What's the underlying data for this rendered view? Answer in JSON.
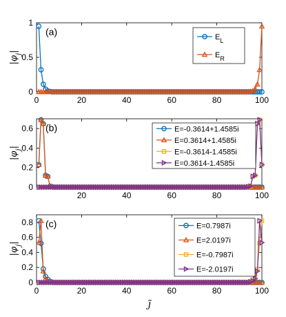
{
  "colors": {
    "blue": "#0072BD",
    "orange": "#D95319",
    "yellow": "#EDB120",
    "purple": "#7E2F8E"
  },
  "chart_data": [
    {
      "type": "line",
      "panel_label": "(a)",
      "ylabel": "|φ_j|",
      "xlabel": "",
      "xlim": [
        0,
        100
      ],
      "ylim": [
        0,
        1
      ],
      "xticks": [
        "0",
        "20",
        "40",
        "60",
        "80",
        "100"
      ],
      "yticks": [
        "0",
        "0.5",
        "1"
      ],
      "ytick_values": [
        0,
        0.5,
        1
      ],
      "legend_position": "top-right",
      "series": [
        {
          "name": "E_L",
          "legend_main": "E",
          "legend_sub": "L",
          "color": "#0072BD",
          "marker": "circle",
          "left": [
            0.95,
            0.32,
            0.11,
            0.04,
            0.013,
            0.005
          ],
          "right": [],
          "base": 0
        },
        {
          "name": "E_R",
          "legend_main": "E",
          "legend_sub": "R",
          "color": "#D95319",
          "marker": "triangle-up",
          "left": [],
          "right": [
            0.005,
            0.013,
            0.04,
            0.11,
            0.32,
            0.95
          ],
          "base": 0
        }
      ]
    },
    {
      "type": "line",
      "panel_label": "(b)",
      "ylabel": "|φ_j|",
      "xlabel": "",
      "xlim": [
        0,
        100
      ],
      "ylim": [
        0,
        0.7
      ],
      "xticks": [
        "20",
        "40",
        "60",
        "80",
        "100"
      ],
      "yticks": [
        "0",
        "0.2",
        "0.4",
        "0.6"
      ],
      "ytick_values": [
        0,
        0.2,
        0.4,
        0.6
      ],
      "legend_position": "top-right",
      "series": [
        {
          "name": "E=-0.3614+1.4585i",
          "color": "#0072BD",
          "marker": "circle",
          "left": [
            0.23,
            0.69,
            0.65,
            0.12,
            0.11,
            0.01,
            0.005
          ],
          "right": [],
          "base": 0
        },
        {
          "name": "E=0.3614+1.4585i",
          "color": "#D95319",
          "marker": "triangle-up",
          "left": [
            0.23,
            0.69,
            0.65,
            0.12,
            0.11,
            0.01,
            0.005
          ],
          "right": [],
          "base": 0
        },
        {
          "name": "E=-0.3614-1.4585i",
          "color": "#EDB120",
          "marker": "square",
          "left": [],
          "right": [
            0.005,
            0.01,
            0.11,
            0.12,
            0.65,
            0.69,
            0.23
          ],
          "base": 0
        },
        {
          "name": "E=0.3614-1.4585i",
          "color": "#7E2F8E",
          "marker": "triangle-right",
          "left": [],
          "right": [
            0.005,
            0.01,
            0.11,
            0.12,
            0.65,
            0.69,
            0.23
          ],
          "base": 0
        }
      ]
    },
    {
      "type": "line",
      "panel_label": "(c)",
      "ylabel": "|φ_j|",
      "xlabel": "j̃",
      "xlim": [
        0,
        100
      ],
      "ylim": [
        0,
        0.9
      ],
      "xticks": [
        "0",
        "20",
        "40",
        "60",
        "80",
        "100"
      ],
      "yticks": [
        "0",
        "0.2",
        "0.4",
        "0.6",
        "0.8"
      ],
      "ytick_values": [
        0,
        0.2,
        0.4,
        0.6,
        0.8
      ],
      "legend_position": "top-right",
      "series": [
        {
          "name": "E=0.7987i",
          "color": "#0072BD",
          "marker": "circle",
          "left": [
            0.82,
            0.52,
            0.18,
            0.08,
            0.04,
            0.015,
            0.005
          ],
          "right": [],
          "base": 0
        },
        {
          "name": "E=2.0197i",
          "color": "#D95319",
          "marker": "triangle-up",
          "left": [
            0.53,
            0.82,
            0.15,
            0.05,
            0.02,
            0.008
          ],
          "right": [],
          "base": 0
        },
        {
          "name": "E=-0.7987i",
          "color": "#EDB120",
          "marker": "square",
          "left": [],
          "right": [
            0.005,
            0.015,
            0.04,
            0.08,
            0.18,
            0.52,
            0.82
          ],
          "base": 0
        },
        {
          "name": "E=-2.0197i",
          "color": "#7E2F8E",
          "marker": "triangle-right",
          "left": [],
          "right": [
            0.008,
            0.02,
            0.05,
            0.15,
            0.82,
            0.53
          ],
          "base": 0
        }
      ]
    }
  ]
}
